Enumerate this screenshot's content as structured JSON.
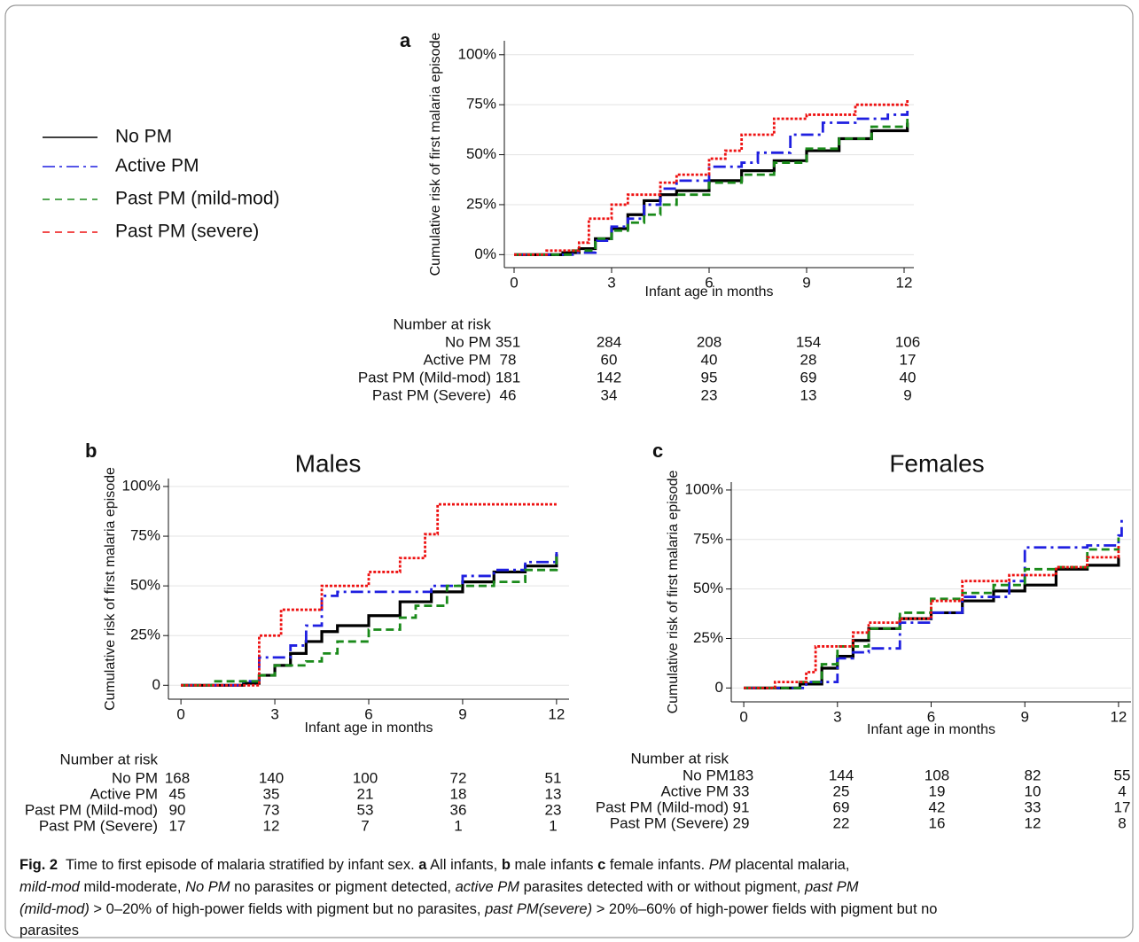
{
  "legend": [
    "No PM",
    "Active PM",
    "Past PM (mild-mod)",
    "Past PM (severe)"
  ],
  "chart_data": [
    {
      "type": "line",
      "panel": "a",
      "ylabel": "Cumulative risk of first malaria episode",
      "xlabel": "Infant age in months",
      "xlim": [
        -0.3,
        12.3
      ],
      "ylim": [
        -6.5,
        107
      ],
      "xticks": [
        0,
        3,
        6,
        9,
        12
      ],
      "yticks": [
        {
          "value": 0,
          "label": "0%"
        },
        {
          "value": 25,
          "label": "25%"
        },
        {
          "value": 50,
          "label": "50%"
        },
        {
          "value": 75,
          "label": "75%"
        },
        {
          "value": 100,
          "label": "100%"
        }
      ],
      "grid": true,
      "series": [
        {
          "color": "#000000",
          "x": [
            0,
            1.5,
            2,
            2.5,
            3,
            3.5,
            4,
            4.5,
            5,
            6,
            7,
            8,
            9,
            10,
            11,
            12.1
          ],
          "values": [
            0,
            1,
            3,
            8,
            13,
            20,
            27,
            30,
            32,
            37,
            42,
            47,
            52,
            58,
            62,
            66
          ]
        },
        {
          "color": "#1f1fe0",
          "x": [
            0,
            1.8,
            2.5,
            3,
            3.5,
            4,
            4.5,
            5,
            6,
            7,
            7.5,
            8.5,
            9.5,
            10.5,
            11.5,
            12.1
          ],
          "values": [
            0,
            1,
            7,
            14,
            18,
            25,
            33,
            37,
            44,
            46,
            51,
            60,
            66,
            68,
            70,
            72
          ]
        },
        {
          "color": "#1a8a1a",
          "x": [
            0,
            1.8,
            2.5,
            3,
            3.5,
            4,
            4.5,
            5,
            6,
            7,
            8,
            9,
            10,
            11,
            12.1
          ],
          "values": [
            0,
            2,
            8,
            12,
            16,
            20,
            25,
            30,
            36,
            40,
            46,
            53,
            58,
            64,
            70
          ]
        },
        {
          "color": "#ee1111",
          "x": [
            0,
            1,
            2,
            2.3,
            3,
            3.5,
            4.5,
            5,
            6,
            6.5,
            7,
            8,
            9,
            10.5,
            12.1
          ],
          "values": [
            0,
            2,
            6,
            18,
            25,
            30,
            36,
            40,
            48,
            52,
            60,
            68,
            70,
            75,
            78
          ]
        }
      ],
      "risk_table": {
        "header": "Number at risk",
        "rows": [
          {
            "name": "No PM",
            "values": [
              351,
              284,
              208,
              154,
              106
            ]
          },
          {
            "name": "Active PM",
            "values": [
              78,
              60,
              40,
              28,
              17
            ]
          },
          {
            "name": "Past PM (Mild-mod)",
            "values": [
              181,
              142,
              95,
              69,
              40
            ]
          },
          {
            "name": "Past PM (Severe)",
            "values": [
              46,
              34,
              23,
              13,
              9
            ]
          }
        ]
      }
    },
    {
      "type": "line",
      "panel": "b",
      "title": "Males",
      "ylabel": "Cumulative risk of first malaria episode",
      "xlabel": "Infant age in months",
      "xlim": [
        -0.4,
        12.4
      ],
      "ylim": [
        -7,
        104
      ],
      "xticks": [
        0,
        3,
        6,
        9,
        12
      ],
      "yticks": [
        0,
        {
          "value": 25,
          "label": "25%"
        },
        {
          "value": 50,
          "label": "50%"
        },
        {
          "value": 75,
          "label": "75%"
        },
        {
          "value": 100,
          "label": "100%"
        }
      ],
      "grid": true,
      "series": [
        {
          "color": "#000000",
          "x": [
            0,
            2,
            2.5,
            3,
            3.5,
            4,
            4.5,
            5,
            6,
            7,
            8,
            9,
            10,
            11,
            12
          ],
          "values": [
            0,
            1,
            5,
            10,
            16,
            22,
            27,
            30,
            35,
            42,
            47,
            52,
            57,
            60,
            66
          ]
        },
        {
          "color": "#1f1fe0",
          "x": [
            0,
            2,
            2.5,
            3.5,
            4,
            4.5,
            5,
            6,
            8,
            9,
            10,
            11,
            12
          ],
          "values": [
            0,
            2,
            14,
            20,
            30,
            45,
            47,
            47,
            50,
            55,
            58,
            62,
            67
          ]
        },
        {
          "color": "#1a8a1a",
          "x": [
            0,
            1,
            2.5,
            3,
            4,
            4.5,
            5,
            6,
            7,
            7.5,
            8.5,
            10,
            11,
            12
          ],
          "values": [
            0,
            2,
            5,
            10,
            12,
            16,
            22,
            28,
            34,
            40,
            50,
            52,
            58,
            67
          ]
        },
        {
          "color": "#ee1111",
          "x": [
            0,
            2,
            2.5,
            3.2,
            4.5,
            6,
            7,
            7.8,
            8.2,
            12
          ],
          "values": [
            0,
            0,
            25,
            38,
            50,
            57,
            64,
            76,
            91,
            91
          ]
        }
      ],
      "risk_table": {
        "header": "Number at risk",
        "rows": [
          {
            "name": "No PM",
            "values": [
              168,
              140,
              100,
              72,
              51
            ]
          },
          {
            "name": "Active PM",
            "values": [
              45,
              35,
              21,
              18,
              13
            ]
          },
          {
            "name": "Past PM (Mild-mod)",
            "values": [
              90,
              73,
              53,
              36,
              23
            ]
          },
          {
            "name": "Past PM (Severe)",
            "values": [
              17,
              12,
              7,
              1,
              1
            ]
          }
        ]
      }
    },
    {
      "type": "line",
      "panel": "c",
      "title": "Females",
      "ylabel": "Cumulative risk of first malaria episode",
      "xlabel": "Infant age in months",
      "xlim": [
        -0.4,
        12.4
      ],
      "ylim": [
        -7,
        104
      ],
      "xticks": [
        0,
        3,
        6,
        9,
        12
      ],
      "yticks": [
        0,
        {
          "value": 25,
          "label": "25%"
        },
        {
          "value": 50,
          "label": "50%"
        },
        {
          "value": 75,
          "label": "75%"
        },
        {
          "value": 100,
          "label": "100%"
        }
      ],
      "grid": true,
      "series": [
        {
          "color": "#000000",
          "x": [
            0,
            1.8,
            2.5,
            3,
            3.5,
            4,
            5,
            6,
            7,
            8,
            9,
            10,
            11,
            12
          ],
          "values": [
            0,
            2,
            10,
            16,
            24,
            30,
            35,
            38,
            44,
            49,
            52,
            60,
            62,
            66
          ]
        },
        {
          "color": "#1f1fe0",
          "x": [
            0,
            2,
            3,
            3.5,
            4,
            5,
            6,
            7,
            8.5,
            9,
            11,
            12,
            12.1
          ],
          "values": [
            0,
            3,
            15,
            18,
            20,
            33,
            38,
            46,
            54,
            71,
            72,
            77,
            87
          ]
        },
        {
          "color": "#1a8a1a",
          "x": [
            0,
            1.8,
            2.5,
            3,
            4,
            5,
            6,
            7,
            8,
            9,
            10,
            11,
            12
          ],
          "values": [
            0,
            3,
            12,
            21,
            30,
            38,
            45,
            48,
            52,
            60,
            61,
            70,
            76
          ]
        },
        {
          "color": "#ee1111",
          "x": [
            0,
            1,
            2,
            2.3,
            3,
            3.5,
            4,
            5,
            6,
            7,
            8.5,
            10,
            11,
            12
          ],
          "values": [
            0,
            3,
            8,
            21,
            21,
            28,
            33,
            35,
            44,
            54,
            57,
            61,
            66,
            72
          ]
        }
      ],
      "risk_table": {
        "header": "Number at risk",
        "rows": [
          {
            "name": "No PM",
            "values": [
              183,
              144,
              108,
              82,
              55
            ]
          },
          {
            "name": "Active PM",
            "values": [
              33,
              25,
              19,
              10,
              4
            ]
          },
          {
            "name": "Past PM (Mild-mod)",
            "values": [
              91,
              69,
              42,
              33,
              17
            ]
          },
          {
            "name": "Past PM (Severe)",
            "values": [
              29,
              22,
              16,
              12,
              8
            ]
          }
        ]
      }
    }
  ],
  "caption": [
    [
      "Fig. 2",
      "  Time to first episode of malaria stratified by infant sex. ",
      "a",
      " All infants, ",
      "b",
      " male infants ",
      "c",
      " female infants. ",
      "PM",
      " placental malaria,"
    ],
    [
      "mild-mod",
      " mild-moderate, ",
      "No PM",
      " no parasites or pigment detected, ",
      "active PM",
      " parasites detected with or without pigment, ",
      "past PM"
    ],
    [
      "(mild-mod)",
      " > 0–20% of high-power fields with pigment but no parasites, ",
      "past PM(severe)",
      " > 20%–60% of high-power fields with pigment but no"
    ],
    [
      "parasites"
    ]
  ]
}
